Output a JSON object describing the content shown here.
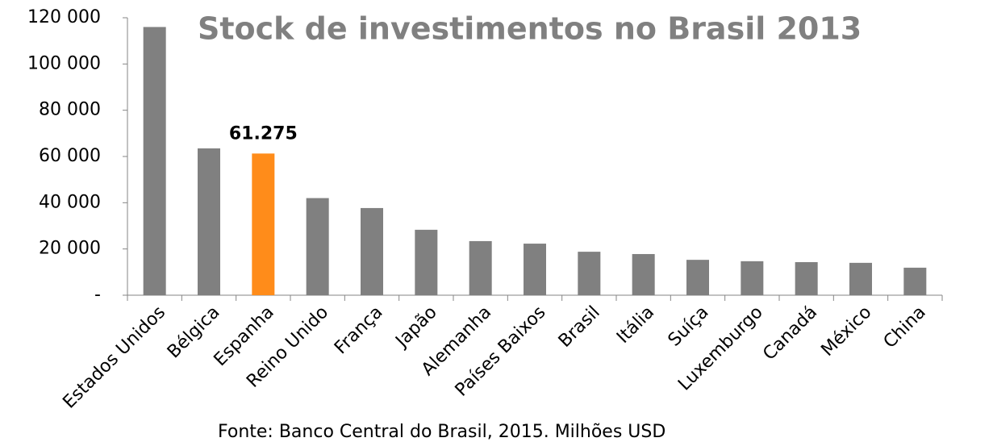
{
  "chart_data": {
    "type": "bar",
    "title": "Stock de investimentos no Brasil 2013",
    "source": "Fonte: Banco Central do Brasil, 2015. Milhões USD",
    "categories": [
      "Estados Unidos",
      "Bélgica",
      "Espanha",
      "Reino Unido",
      "França",
      "Japão",
      "Alemanha",
      "Países Baixos",
      "Brasil",
      "Itália",
      "Suíça",
      "Luxemburgo",
      "Canadá",
      "México",
      "China"
    ],
    "values": [
      116000,
      63500,
      61275,
      42000,
      37700,
      28300,
      23400,
      22300,
      18800,
      17800,
      15300,
      14700,
      14300,
      14000,
      11900
    ],
    "value_labels": [
      null,
      null,
      "61.275",
      null,
      null,
      null,
      null,
      null,
      null,
      null,
      null,
      null,
      null,
      null,
      null
    ],
    "colors": [
      "#808080",
      "#808080",
      "#ff8c1a",
      "#808080",
      "#808080",
      "#808080",
      "#808080",
      "#808080",
      "#808080",
      "#808080",
      "#808080",
      "#808080",
      "#808080",
      "#808080",
      "#808080"
    ],
    "ylim": [
      0,
      120000
    ],
    "yticks": [
      {
        "value": 0,
        "label": "-"
      },
      {
        "value": 20000,
        "label": "20 000"
      },
      {
        "value": 40000,
        "label": "40 000"
      },
      {
        "value": 60000,
        "label": "60 000"
      },
      {
        "value": 80000,
        "label": "80 000"
      },
      {
        "value": 100000,
        "label": "100 000"
      },
      {
        "value": 120000,
        "label": "120 000"
      }
    ],
    "grid": false
  }
}
